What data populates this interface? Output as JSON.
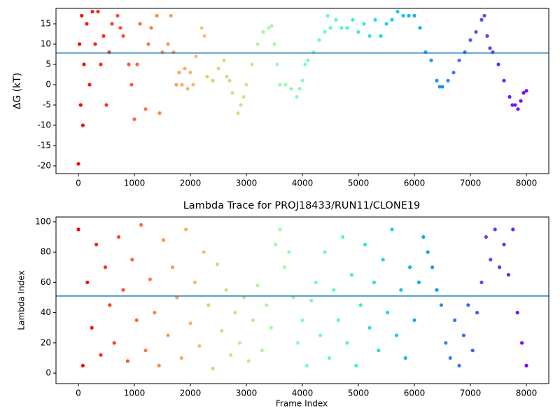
{
  "chart_data": [
    {
      "type": "scatter",
      "ylabel": "ΔG (kT)",
      "colormap": "rainbow_r",
      "hline": 7.8,
      "hline_color": "#1f77b4",
      "xlim": [
        -400,
        8400
      ],
      "ylim": [
        -21.9,
        18.8
      ],
      "xticks": [
        0,
        1000,
        2000,
        3000,
        4000,
        5000,
        6000,
        7000,
        8000
      ],
      "yticks": [
        -20,
        -15,
        -10,
        -5,
        0,
        5,
        10,
        15
      ],
      "x": [
        0,
        20,
        40,
        60,
        80,
        100,
        150,
        200,
        250,
        300,
        350,
        400,
        450,
        500,
        550,
        600,
        700,
        750,
        800,
        900,
        950,
        1000,
        1050,
        1100,
        1200,
        1250,
        1300,
        1400,
        1450,
        1500,
        1600,
        1650,
        1700,
        1750,
        1800,
        1850,
        1900,
        1950,
        2000,
        2050,
        2100,
        2200,
        2250,
        2300,
        2400,
        2500,
        2600,
        2650,
        2700,
        2750,
        2850,
        2900,
        2950,
        3000,
        3100,
        3200,
        3300,
        3400,
        3450,
        3500,
        3550,
        3600,
        3700,
        3800,
        3900,
        3950,
        4000,
        4050,
        4100,
        4200,
        4300,
        4400,
        4450,
        4500,
        4600,
        4700,
        4800,
        4900,
        5000,
        5100,
        5200,
        5300,
        5400,
        5500,
        5600,
        5700,
        5800,
        5900,
        6000,
        6100,
        6200,
        6300,
        6400,
        6450,
        6500,
        6600,
        6700,
        6800,
        6900,
        7000,
        7100,
        7200,
        7250,
        7300,
        7350,
        7400,
        7500,
        7600,
        7700,
        7750,
        7800,
        7850,
        7900,
        7950,
        8000
      ],
      "values": [
        -19.5,
        10,
        -5,
        17,
        -10,
        5,
        15,
        0,
        18,
        10,
        18,
        5,
        12,
        -5,
        8,
        15,
        17,
        14,
        12,
        5,
        0,
        -8.5,
        5,
        15,
        -6,
        10,
        14,
        17,
        -7,
        8,
        10,
        17,
        8,
        0,
        3,
        0,
        4,
        -1,
        3,
        0,
        7,
        14,
        12,
        2,
        1,
        4,
        6,
        2,
        1,
        -2,
        -7,
        -5,
        -3,
        0,
        5,
        10,
        13,
        14,
        14.5,
        10,
        5,
        0,
        0,
        -1,
        -3,
        -1,
        1,
        5,
        6,
        8,
        11,
        13,
        17,
        14,
        16,
        14,
        14,
        16,
        13,
        15,
        12,
        16,
        12,
        15,
        16,
        18,
        17,
        17,
        17,
        14,
        8,
        6,
        1,
        -0.5,
        -0.5,
        1,
        3,
        6,
        8,
        11,
        13,
        16,
        17,
        12,
        9,
        8,
        5,
        1,
        -3,
        -5,
        -5,
        -6,
        -4,
        -2,
        -1.5
      ]
    },
    {
      "type": "scatter",
      "title": "Lambda Trace for PROJ18433/RUN11/CLONE19",
      "xlabel": "Frame Index",
      "ylabel": "Lambda Index",
      "colormap": "rainbow_r",
      "hline": 51,
      "hline_color": "#1f77b4",
      "xlim": [
        -400,
        8400
      ],
      "ylim": [
        -6.9,
        103.2
      ],
      "xticks": [
        0,
        1000,
        2000,
        3000,
        4000,
        5000,
        6000,
        7000,
        8000
      ],
      "yticks": [
        0,
        20,
        40,
        60,
        80,
        100
      ],
      "x": [
        0,
        80,
        160,
        240,
        320,
        400,
        480,
        560,
        640,
        720,
        800,
        880,
        960,
        1040,
        1120,
        1200,
        1280,
        1360,
        1440,
        1520,
        1600,
        1680,
        1760,
        1840,
        1920,
        2000,
        2080,
        2160,
        2240,
        2320,
        2400,
        2480,
        2560,
        2640,
        2720,
        2800,
        2880,
        2960,
        3040,
        3120,
        3200,
        3280,
        3360,
        3440,
        3520,
        3600,
        3680,
        3760,
        3840,
        3920,
        4000,
        4080,
        4160,
        4240,
        4320,
        4400,
        4480,
        4560,
        4640,
        4720,
        4800,
        4880,
        4960,
        5040,
        5120,
        5200,
        5280,
        5360,
        5440,
        5520,
        5600,
        5680,
        5760,
        5840,
        5920,
        6000,
        6080,
        6160,
        6240,
        6320,
        6400,
        6480,
        6560,
        6640,
        6720,
        6800,
        6880,
        6960,
        7040,
        7120,
        7200,
        7280,
        7360,
        7440,
        7520,
        7600,
        7680,
        7760,
        7840,
        7920,
        8000
      ],
      "values": [
        95,
        5,
        60,
        30,
        85,
        12,
        70,
        45,
        20,
        90,
        55,
        8,
        75,
        35,
        98,
        15,
        62,
        40,
        5,
        88,
        25,
        70,
        50,
        10,
        95,
        33,
        60,
        18,
        80,
        45,
        3,
        72,
        28,
        55,
        12,
        40,
        20,
        50,
        8,
        35,
        58,
        15,
        45,
        30,
        85,
        95,
        70,
        80,
        50,
        20,
        35,
        5,
        48,
        60,
        25,
        80,
        10,
        55,
        35,
        90,
        20,
        65,
        5,
        45,
        85,
        30,
        60,
        15,
        75,
        40,
        95,
        25,
        55,
        10,
        70,
        35,
        60,
        90,
        80,
        70,
        55,
        45,
        20,
        10,
        35,
        5,
        25,
        45,
        15,
        40,
        60,
        90,
        75,
        95,
        70,
        85,
        65,
        95,
        40,
        20,
        5
      ]
    }
  ]
}
